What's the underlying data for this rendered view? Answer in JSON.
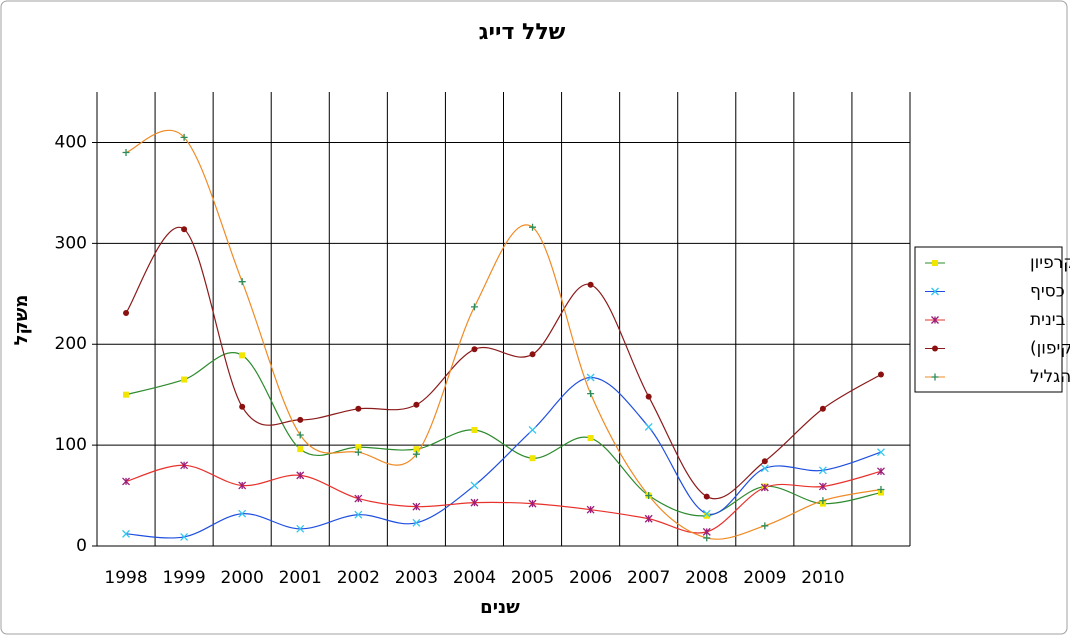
{
  "chart_data": {
    "type": "line",
    "title": "שלל דייג",
    "x_label": "שנים",
    "y_label": "משקל",
    "categories": [
      "1998",
      "1999",
      "2000",
      "2001",
      "2002",
      "2003",
      "2004",
      "2005",
      "2006",
      "2007",
      "2008",
      "2009",
      "2010",
      null
    ],
    "series": [
      {
        "name": "קרפיון",
        "color": "#2e8b2e",
        "marker_color": "#f2e600",
        "marker": "square",
        "values": [
          150,
          165,
          189,
          96,
          98,
          96,
          115,
          87,
          107,
          50,
          30,
          59,
          42,
          53
        ]
      },
      {
        "name": "כסיף",
        "color": "#1f4fe0",
        "marker_color": "#30c8f0",
        "marker": "x",
        "values": [
          12,
          9,
          32,
          17,
          31,
          23,
          60,
          115,
          167,
          118,
          32,
          77,
          75,
          93
        ]
      },
      {
        "name": "בינית",
        "color": "#e8322c",
        "marker_color": "#9b1f7a",
        "marker": "star",
        "values": [
          64,
          80,
          60,
          70,
          47,
          39,
          43,
          42,
          36,
          27,
          14,
          58,
          59,
          74
        ]
      },
      {
        "name": "בורי (קיפון)",
        "color": "#8b1a1a",
        "marker_color": "#8b1010",
        "marker": "circle",
        "values": [
          231,
          314,
          138,
          125,
          136,
          140,
          195,
          190,
          259,
          148,
          49,
          84,
          136,
          170
        ]
      },
      {
        "name": "אמנון הגליל",
        "color": "#f08a24",
        "marker_color": "#2e8b57",
        "marker": "plus",
        "values": [
          390,
          405,
          262,
          110,
          93,
          91,
          237,
          316,
          151,
          50,
          8,
          20,
          45,
          56
        ]
      }
    ],
    "ylim": [
      0,
      450
    ],
    "yticks": [
      0,
      100,
      200,
      300,
      400
    ],
    "grid": true,
    "legend": "right"
  }
}
